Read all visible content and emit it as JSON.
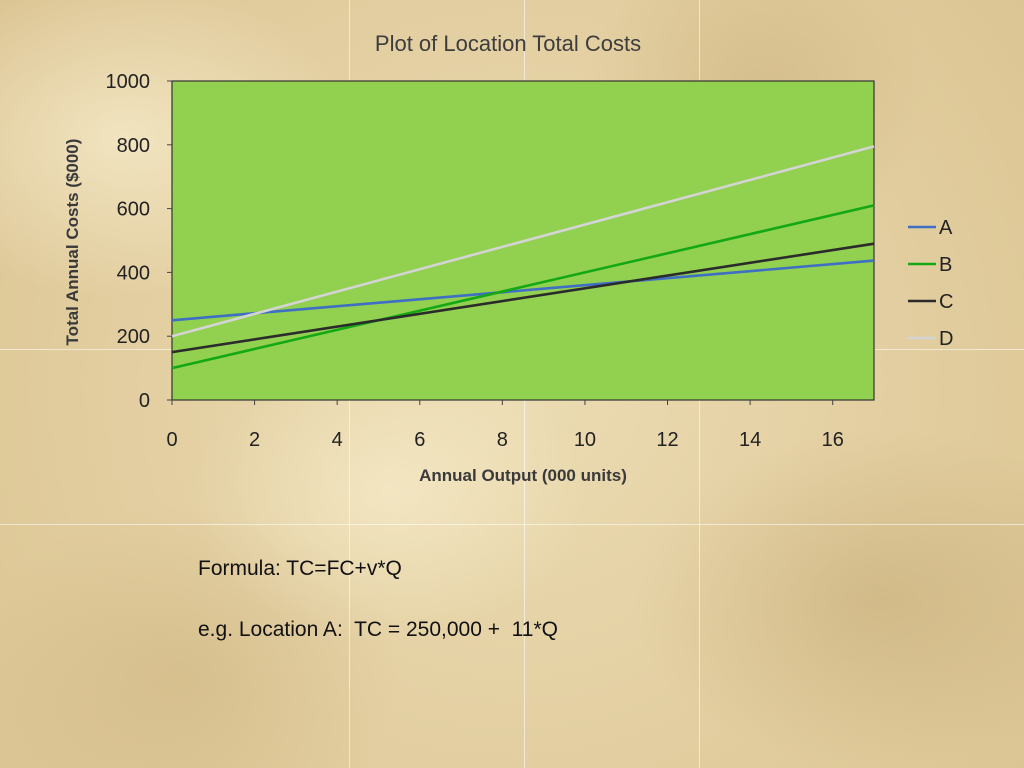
{
  "chart_data": {
    "type": "line",
    "title": "Plot of Location Total Costs",
    "xlabel": "Annual Output (000 units)",
    "ylabel": "Total Annual Costs ($000)",
    "xlim": [
      0,
      17
    ],
    "ylim": [
      0,
      1000
    ],
    "x_ticks": [
      0,
      2,
      4,
      6,
      8,
      10,
      12,
      14,
      16
    ],
    "y_ticks": [
      0,
      200,
      400,
      600,
      800,
      1000
    ],
    "x_tick_labels": [
      "0",
      "2",
      "4",
      "6",
      "8",
      "10",
      "12",
      "14",
      "16"
    ],
    "y_tick_labels": [
      "0",
      "200",
      "400",
      "600",
      "800",
      "1000"
    ],
    "legend_position": "right",
    "grid": false,
    "plot_background": "#92d050",
    "series": [
      {
        "name": "A",
        "color": "#3f6fc5",
        "x": [
          0,
          17
        ],
        "y": [
          250,
          437
        ]
      },
      {
        "name": "B",
        "color": "#14a814",
        "x": [
          0,
          17
        ],
        "y": [
          100,
          610
        ]
      },
      {
        "name": "C",
        "color": "#2b2b2b",
        "x": [
          0,
          17
        ],
        "y": [
          150,
          490
        ]
      },
      {
        "name": "D",
        "color": "#d4d4d4",
        "x": [
          0,
          17
        ],
        "y": [
          200,
          795
        ]
      }
    ]
  },
  "notes": {
    "formula": "Formula: TC=FC+v*Q",
    "example": "e.g. Location A:  TC = 250,000 +  11*Q"
  }
}
